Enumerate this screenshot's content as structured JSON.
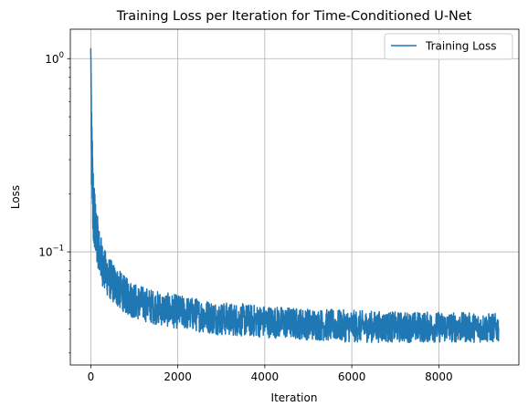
{
  "chart_data": {
    "type": "line",
    "title": "Training Loss per Iteration for Time-Conditioned U-Net",
    "xlabel": "Iteration",
    "ylabel": "Loss",
    "xlim": [
      -470,
      9840
    ],
    "ylim": [
      0.026,
      1.42
    ],
    "yscale": "log",
    "grid": true,
    "legend_position": "top-right",
    "x_ticks": [
      {
        "value": 0,
        "label": "0"
      },
      {
        "value": 2000,
        "label": "2000"
      },
      {
        "value": 4000,
        "label": "4000"
      },
      {
        "value": 6000,
        "label": "6000"
      },
      {
        "value": 8000,
        "label": "8000"
      }
    ],
    "y_major_ticks": [
      {
        "value": 0.1,
        "base": "10",
        "exp": "−1"
      },
      {
        "value": 1,
        "base": "10",
        "exp": "0"
      }
    ],
    "y_minor_ticks": [
      0.03,
      0.04,
      0.05,
      0.06,
      0.07,
      0.08,
      0.09,
      0.2,
      0.3,
      0.4,
      0.5,
      0.6,
      0.7,
      0.8,
      0.9
    ],
    "series": [
      {
        "name": "Training Loss",
        "color": "#1f77b4",
        "x_max": 9375,
        "envelope": [
          {
            "x": 0,
            "low": 1.1,
            "high": 1.15
          },
          {
            "x": 20,
            "low": 0.2,
            "high": 0.55
          },
          {
            "x": 50,
            "low": 0.12,
            "high": 0.28
          },
          {
            "x": 100,
            "low": 0.1,
            "high": 0.19
          },
          {
            "x": 200,
            "low": 0.075,
            "high": 0.13
          },
          {
            "x": 300,
            "low": 0.063,
            "high": 0.105
          },
          {
            "x": 400,
            "low": 0.058,
            "high": 0.095
          },
          {
            "x": 600,
            "low": 0.052,
            "high": 0.083
          },
          {
            "x": 800,
            "low": 0.048,
            "high": 0.074
          },
          {
            "x": 1000,
            "low": 0.045,
            "high": 0.069
          },
          {
            "x": 1500,
            "low": 0.042,
            "high": 0.063
          },
          {
            "x": 2000,
            "low": 0.04,
            "high": 0.06
          },
          {
            "x": 3000,
            "low": 0.037,
            "high": 0.055
          },
          {
            "x": 4000,
            "low": 0.036,
            "high": 0.053
          },
          {
            "x": 5000,
            "low": 0.035,
            "high": 0.051
          },
          {
            "x": 6000,
            "low": 0.034,
            "high": 0.05
          },
          {
            "x": 7000,
            "low": 0.034,
            "high": 0.049
          },
          {
            "x": 8000,
            "low": 0.034,
            "high": 0.049
          },
          {
            "x": 9375,
            "low": 0.034,
            "high": 0.048
          }
        ]
      }
    ]
  }
}
